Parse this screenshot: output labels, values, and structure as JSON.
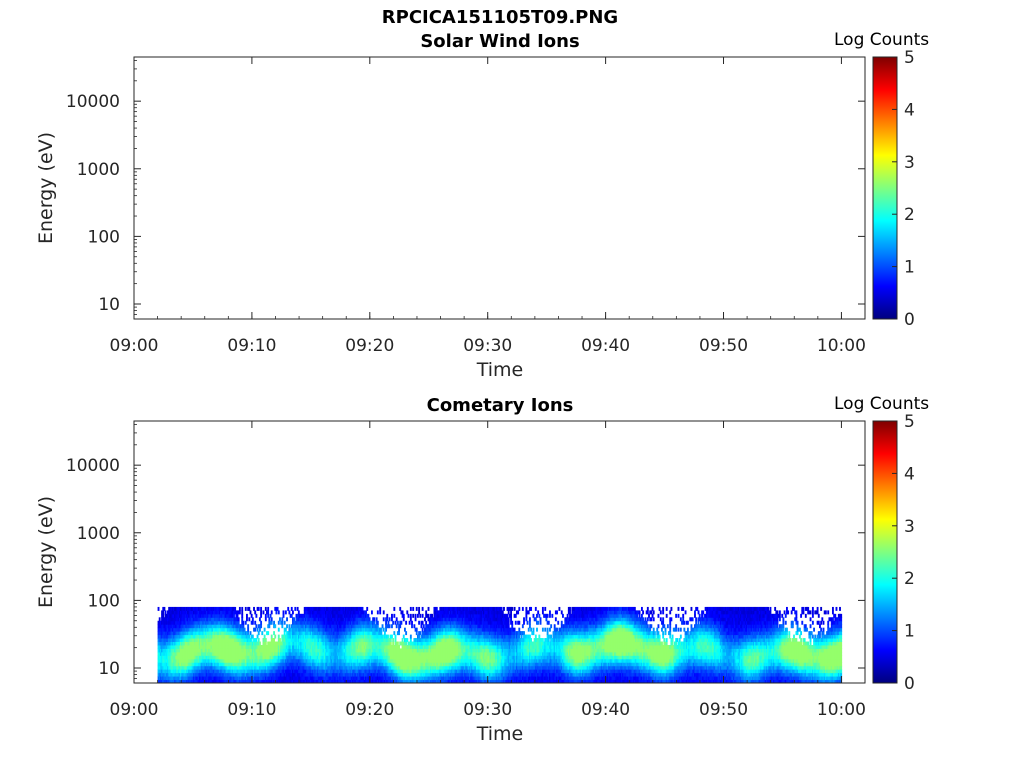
{
  "figure_title": "RPCICA151105T09.PNG",
  "colorbar_label": "Log Counts",
  "chart_data": [
    {
      "type": "heatmap",
      "title": "Solar Wind Ions",
      "xlabel": "Time",
      "ylabel": "Energy (eV)",
      "x_ticks": [
        "09:00",
        "09:10",
        "09:20",
        "09:30",
        "09:40",
        "09:50",
        "10:00"
      ],
      "x_range": [
        "09:00",
        "10:02"
      ],
      "y_scale": "log",
      "y_ticks": [
        "10",
        "100",
        "1000",
        "10000"
      ],
      "y_range": [
        6,
        45000
      ],
      "colorbar": {
        "label": "Log Counts",
        "ticks": [
          "0",
          "1",
          "2",
          "3",
          "4",
          "5"
        ],
        "range": [
          0,
          5
        ],
        "colormap": "jet"
      },
      "data": "empty"
    },
    {
      "type": "heatmap",
      "title": "Cometary Ions",
      "xlabel": "Time",
      "ylabel": "Energy (eV)",
      "x_ticks": [
        "09:00",
        "09:10",
        "09:20",
        "09:30",
        "09:40",
        "09:50",
        "10:00"
      ],
      "x_range": [
        "09:00",
        "10:02"
      ],
      "y_scale": "log",
      "y_ticks": [
        "10",
        "100",
        "1000",
        "10000"
      ],
      "y_range": [
        6,
        45000
      ],
      "colorbar": {
        "label": "Log Counts",
        "ticks": [
          "0",
          "1",
          "2",
          "3",
          "4",
          "5"
        ],
        "range": [
          0,
          5
        ],
        "colormap": "jet"
      },
      "data_time_range": [
        "09:02",
        "10:00"
      ],
      "data_energy_range_eV": [
        6,
        80
      ],
      "peak_energy_eV": 18,
      "peak_log_counts": 2.3
    }
  ]
}
